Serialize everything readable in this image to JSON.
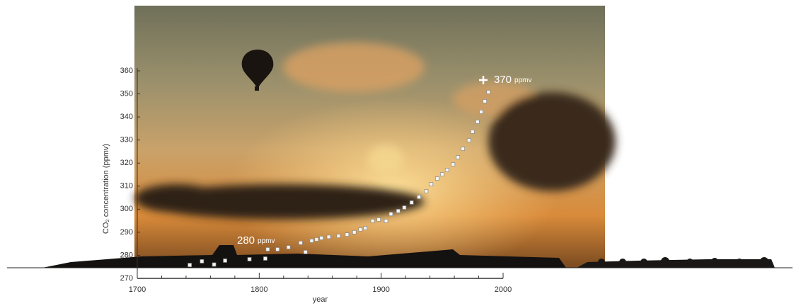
{
  "chart_data": {
    "type": "scatter",
    "xlabel": "year",
    "ylabel": "CO₂ concentration (ppmv)",
    "x": [
      1743,
      1753,
      1763,
      1772,
      1792,
      1805,
      1807,
      1815,
      1824,
      1834,
      1838,
      1843,
      1847,
      1851,
      1857,
      1865,
      1872,
      1878,
      1883,
      1887,
      1893,
      1898,
      1904,
      1908,
      1914,
      1919,
      1925,
      1931,
      1937,
      1941,
      1946,
      1950,
      1954,
      1959,
      1963,
      1967,
      1972,
      1975,
      1979,
      1982,
      1985,
      1988
    ],
    "values": [
      275.8,
      277.4,
      276.0,
      277.7,
      278.3,
      278.6,
      282.6,
      282.6,
      283.5,
      285.4,
      281.4,
      286.3,
      286.9,
      287.5,
      288.0,
      288.4,
      289.0,
      290.0,
      291.2,
      291.8,
      294.9,
      295.5,
      294.9,
      297.9,
      299.2,
      300.7,
      302.9,
      305.3,
      307.8,
      310.8,
      313.3,
      315.1,
      317.0,
      319.4,
      322.5,
      326.2,
      329.9,
      333.6,
      337.9,
      342.2,
      346.8,
      350.8
    ],
    "color": "#f4f4f4",
    "xlim": [
      1700,
      2000
    ],
    "xticks": [
      1700,
      1800,
      1900,
      2000
    ],
    "xminorticks": [
      1720,
      1740,
      1760,
      1780,
      1820,
      1840,
      1860,
      1880,
      1920,
      1940,
      1960,
      1980
    ],
    "ylim": [
      270,
      360
    ],
    "yticks": [
      270,
      280,
      290,
      300,
      310,
      320,
      330,
      340,
      350,
      360
    ],
    "annotations": [
      {
        "text": "280",
        "unit": "ppmv"
      },
      {
        "text": "370",
        "unit": "ppmv"
      }
    ]
  }
}
